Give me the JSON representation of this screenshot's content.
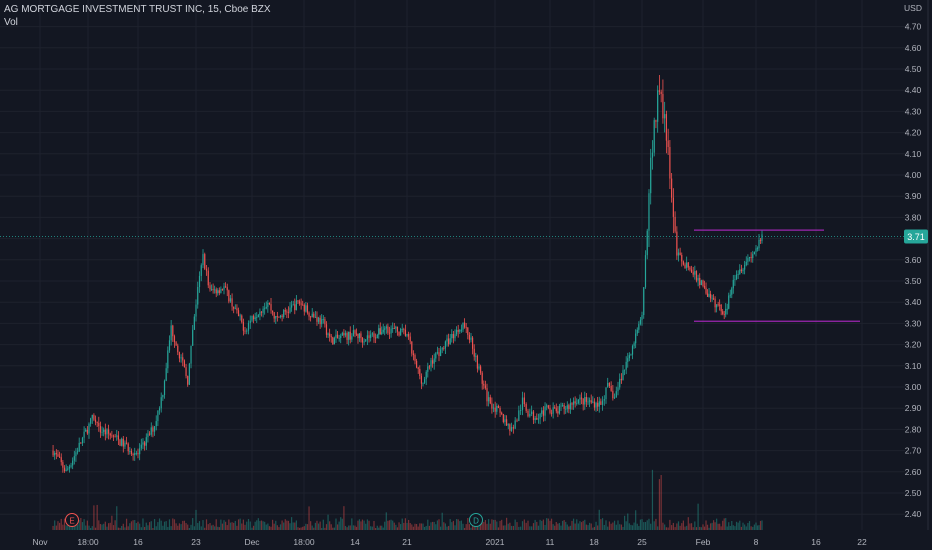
{
  "legend": {
    "symbol_line": "AG MORTGAGE INVESTMENT TRUST INC, 15, Cboe BZX",
    "volume_label": "Vol"
  },
  "currency": "USD",
  "current_price_label": "3.71",
  "event_markers": [
    {
      "letter": "E",
      "type": "earnings",
      "date": "Nov 09"
    },
    {
      "letter": "D",
      "type": "dividend",
      "date": "Dec 30"
    }
  ],
  "colors": {
    "background": "#131722",
    "grid": "#1e222d",
    "up": "#26a69a",
    "down": "#ef5350",
    "level_line": "#9c27b0",
    "price_badge": "#26a69a",
    "marker_e": "#ef5350",
    "marker_d": "#26a69a"
  },
  "chart_data": {
    "type": "candlestick",
    "title": "AG MORTGAGE INVESTMENT TRUST INC, 15, Cboe BZX",
    "interval": "15",
    "exchange": "Cboe BZX",
    "y_axis": {
      "unit": "USD",
      "range": [
        2.37,
        4.74
      ],
      "ticks": [
        "2.40",
        "2.50",
        "2.60",
        "2.70",
        "2.80",
        "2.90",
        "3.00",
        "3.10",
        "3.20",
        "3.30",
        "3.40",
        "3.50",
        "3.60",
        "3.70",
        "3.80",
        "3.90",
        "4.00",
        "4.10",
        "4.20",
        "4.30",
        "4.40",
        "4.50",
        "4.60",
        "4.70"
      ]
    },
    "x_axis": {
      "ticks": [
        "Nov",
        "18:00",
        "16",
        "23",
        "Dec",
        "18:00",
        "14",
        "21",
        "2021",
        "11",
        "18",
        "25",
        "Feb",
        "8",
        "16",
        "22"
      ]
    },
    "grid": true,
    "horizontal_levels": [
      3.74,
      3.31
    ],
    "last_price": 3.71,
    "price_path": [
      {
        "date": "Nov 03",
        "close": 2.7
      },
      {
        "date": "Nov 05",
        "close": 2.6
      },
      {
        "date": "Nov 06",
        "close": 2.66
      },
      {
        "date": "Nov 09",
        "close": 2.85
      },
      {
        "date": "Nov 10",
        "close": 2.8
      },
      {
        "date": "Nov 12",
        "close": 2.77
      },
      {
        "date": "Nov 16",
        "close": 2.68
      },
      {
        "date": "Nov 18",
        "close": 2.82
      },
      {
        "date": "Nov 19",
        "close": 2.98
      },
      {
        "date": "Nov 20",
        "close": 3.28
      },
      {
        "date": "Nov 22",
        "close": 3.03
      },
      {
        "date": "Nov 23",
        "close": 3.4
      },
      {
        "date": "Nov 24",
        "close": 3.62
      },
      {
        "date": "Nov 25",
        "close": 3.45
      },
      {
        "date": "Nov 27",
        "close": 3.47
      },
      {
        "date": "Nov 30",
        "close": 3.27
      },
      {
        "date": "Dec 01",
        "close": 3.33
      },
      {
        "date": "Dec 03",
        "close": 3.4
      },
      {
        "date": "Dec 04",
        "close": 3.32
      },
      {
        "date": "Dec 07",
        "close": 3.4
      },
      {
        "date": "Dec 08",
        "close": 3.36
      },
      {
        "date": "Dec 10",
        "close": 3.3
      },
      {
        "date": "Dec 11",
        "close": 3.22
      },
      {
        "date": "Dec 14",
        "close": 3.25
      },
      {
        "date": "Dec 15",
        "close": 3.23
      },
      {
        "date": "Dec 17",
        "close": 3.25
      },
      {
        "date": "Dec 18",
        "close": 3.28
      },
      {
        "date": "Dec 21",
        "close": 3.25
      },
      {
        "date": "Dec 22",
        "close": 3.11
      },
      {
        "date": "Dec 23",
        "close": 3.02
      },
      {
        "date": "Dec 24",
        "close": 3.12
      },
      {
        "date": "Dec 28",
        "close": 3.3
      },
      {
        "date": "Dec 29",
        "close": 3.22
      },
      {
        "date": "Dec 30",
        "close": 3.08
      },
      {
        "date": "Dec 31",
        "close": 2.95
      },
      {
        "date": "Jan 04",
        "close": 2.8
      },
      {
        "date": "Jan 05",
        "close": 2.85
      },
      {
        "date": "Jan 06",
        "close": 2.93
      },
      {
        "date": "Jan 07",
        "close": 2.88
      },
      {
        "date": "Jan 08",
        "close": 2.86
      },
      {
        "date": "Jan 11",
        "close": 2.9
      },
      {
        "date": "Jan 12",
        "close": 2.88
      },
      {
        "date": "Jan 13",
        "close": 2.9
      },
      {
        "date": "Jan 14",
        "close": 2.91
      },
      {
        "date": "Jan 15",
        "close": 2.94
      },
      {
        "date": "Jan 19",
        "close": 2.92
      },
      {
        "date": "Jan 20",
        "close": 3.0
      },
      {
        "date": "Jan 21",
        "close": 2.95
      },
      {
        "date": "Jan 22",
        "close": 3.05
      },
      {
        "date": "Jan 25",
        "close": 3.32
      },
      {
        "date": "Jan 26",
        "close": 4.05
      },
      {
        "date": "Jan 27",
        "close": 4.45
      },
      {
        "date": "Jan 28",
        "close": 4.1
      },
      {
        "date": "Jan 29",
        "close": 3.63
      },
      {
        "date": "Feb 01",
        "close": 3.48
      },
      {
        "date": "Feb 02",
        "close": 3.41
      },
      {
        "date": "Feb 03",
        "close": 3.38
      },
      {
        "date": "Feb 04",
        "close": 3.35
      },
      {
        "date": "Feb 05",
        "close": 3.52
      },
      {
        "date": "Feb 08",
        "close": 3.65
      },
      {
        "date": "Feb 09",
        "close": 3.71
      }
    ],
    "volume": {
      "label": "Vol",
      "spikes": [
        {
          "date": "Nov 09",
          "relative": 0.22
        },
        {
          "date": "Nov 23",
          "relative": 0.28
        },
        {
          "date": "Jan 26",
          "relative": 0.88
        },
        {
          "date": "Jan 27",
          "relative": 0.6
        },
        {
          "date": "Jan 28",
          "relative": 0.42
        }
      ]
    }
  }
}
